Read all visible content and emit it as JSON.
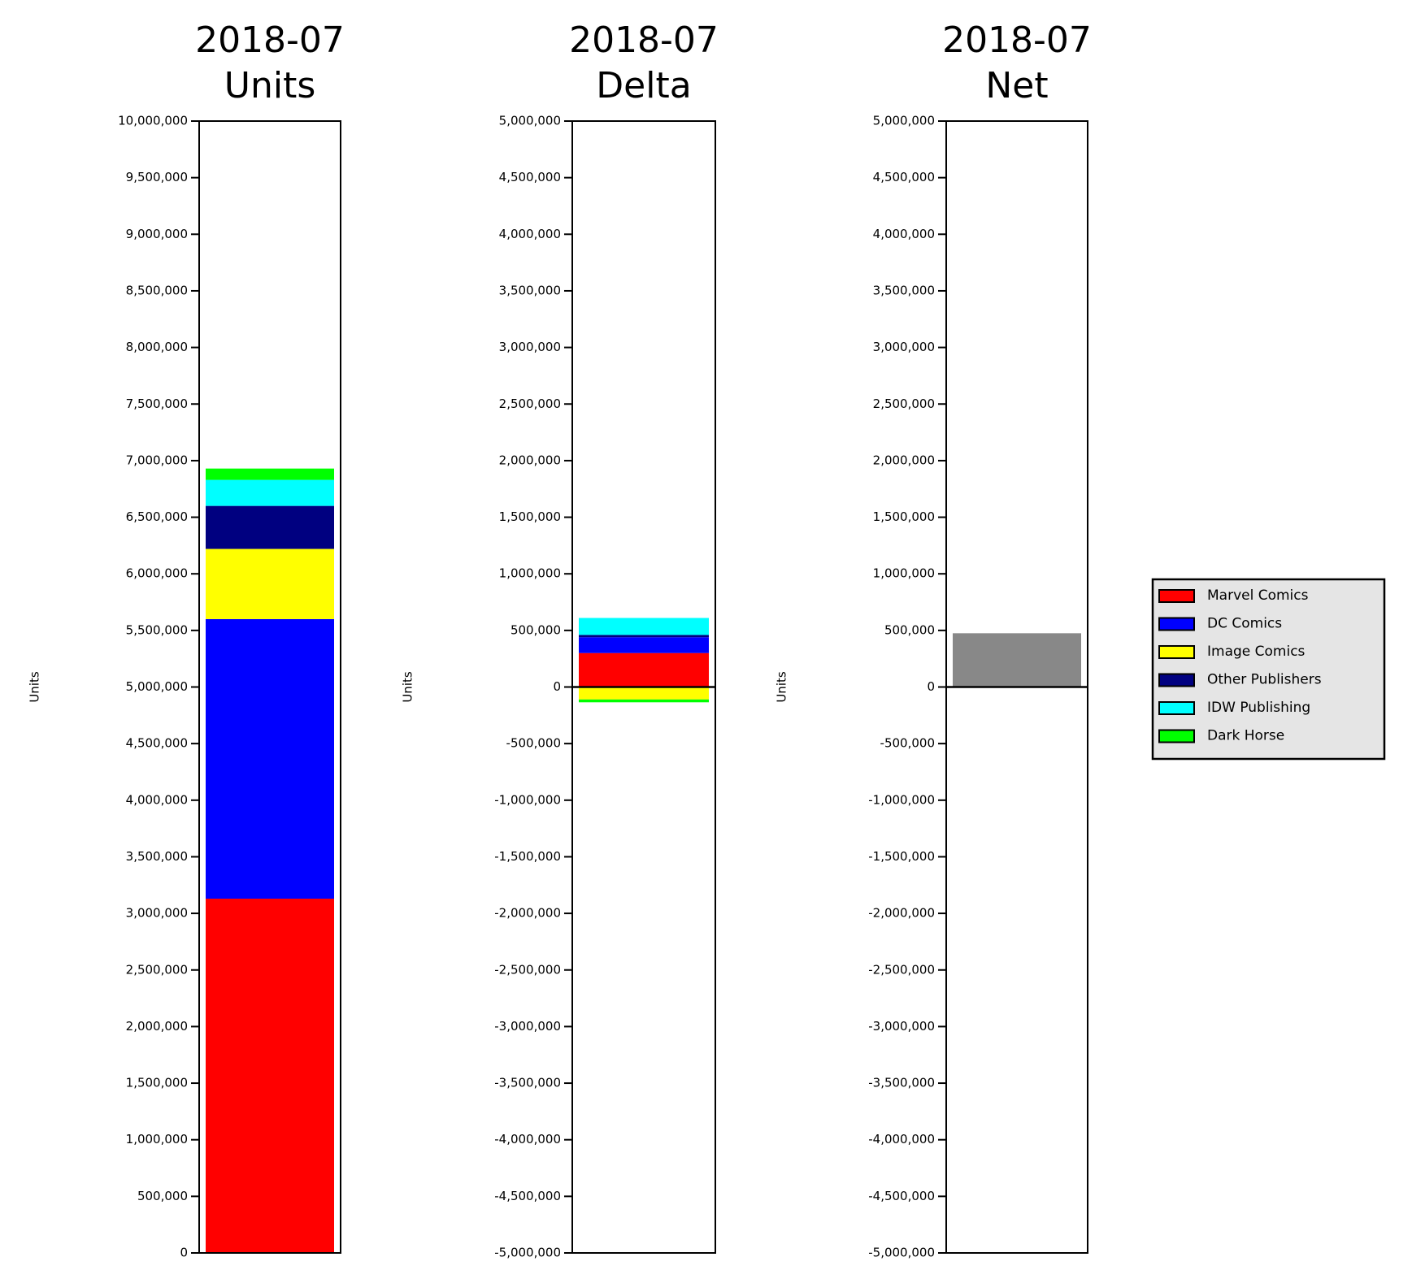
{
  "chart_data": [
    {
      "type": "stacked-bar",
      "title": "2018-07",
      "subtitle": "Units",
      "ylabel": "Units",
      "series": [
        {
          "name": "Marvel Comics",
          "color": "#ff0000",
          "values": [
            3130000
          ]
        },
        {
          "name": "DC Comics",
          "color": "#0000ff",
          "values": [
            2470000
          ]
        },
        {
          "name": "Image Comics",
          "color": "#ffff00",
          "values": [
            620000
          ]
        },
        {
          "name": "Other Publishers",
          "color": "#000080",
          "values": [
            380000
          ]
        },
        {
          "name": "IDW Publishing",
          "color": "#00ffff",
          "values": [
            230000
          ]
        },
        {
          "name": "Dark Horse",
          "color": "#00ff00",
          "values": [
            100000
          ]
        }
      ],
      "ylim": [
        0,
        10000000
      ],
      "yticks": [
        0,
        {
          "value": 500000,
          "label": "500,000"
        },
        {
          "value": 1000000,
          "label": "1,000,000"
        },
        {
          "value": 1500000,
          "label": "1,500,000"
        },
        {
          "value": 2000000,
          "label": "2,000,000"
        },
        {
          "value": 2500000,
          "label": "2,500,000"
        },
        {
          "value": 3000000,
          "label": "3,000,000"
        },
        {
          "value": 3500000,
          "label": "3,500,000"
        },
        {
          "value": 4000000,
          "label": "4,000,000"
        },
        {
          "value": 4500000,
          "label": "4,500,000"
        },
        {
          "value": 5000000,
          "label": "5,000,000"
        },
        {
          "value": 5500000,
          "label": "5,500,000"
        },
        {
          "value": 6000000,
          "label": "6,000,000"
        },
        {
          "value": 6500000,
          "label": "6,500,000"
        },
        {
          "value": 7000000,
          "label": "7,000,000"
        },
        {
          "value": 7500000,
          "label": "7,500,000"
        },
        {
          "value": 8000000,
          "label": "8,000,000"
        },
        {
          "value": 8500000,
          "label": "8,500,000"
        },
        {
          "value": 9000000,
          "label": "9,000,000"
        },
        {
          "value": 9500000,
          "label": "9,500,000"
        },
        {
          "value": 10000000,
          "label": "10,000,000"
        }
      ]
    },
    {
      "type": "stacked-bar",
      "title": "2018-07",
      "subtitle": "Delta",
      "ylabel": "Units",
      "series": [
        {
          "name": "Marvel Comics",
          "color": "#ff0000",
          "values": [
            300000
          ]
        },
        {
          "name": "DC Comics",
          "color": "#0000ff",
          "values": [
            140000
          ]
        },
        {
          "name": "Image Comics",
          "color": "#ffff00",
          "values": [
            -110000
          ]
        },
        {
          "name": "Other Publishers",
          "color": "#000080",
          "values": [
            20000
          ]
        },
        {
          "name": "IDW Publishing",
          "color": "#00ffff",
          "values": [
            150000
          ]
        },
        {
          "name": "Dark Horse",
          "color": "#00ff00",
          "values": [
            -25000
          ]
        }
      ],
      "ylim": [
        -5000000,
        5000000
      ],
      "yticks": [
        {
          "value": -5000000,
          "label": "-5,000,000"
        },
        {
          "value": -4500000,
          "label": "-4,500,000"
        },
        {
          "value": -4000000,
          "label": "-4,000,000"
        },
        {
          "value": -3500000,
          "label": "-3,500,000"
        },
        {
          "value": -3000000,
          "label": "-3,000,000"
        },
        {
          "value": -2500000,
          "label": "-2,500,000"
        },
        {
          "value": -2000000,
          "label": "-2,000,000"
        },
        {
          "value": -1500000,
          "label": "-1,500,000"
        },
        {
          "value": -1000000,
          "label": "-1,000,000"
        },
        {
          "value": -500000,
          "label": "-500,000"
        },
        0,
        {
          "value": 500000,
          "label": "500,000"
        },
        {
          "value": 1000000,
          "label": "1,000,000"
        },
        {
          "value": 1500000,
          "label": "1,500,000"
        },
        {
          "value": 2000000,
          "label": "2,000,000"
        },
        {
          "value": 2500000,
          "label": "2,500,000"
        },
        {
          "value": 3000000,
          "label": "3,000,000"
        },
        {
          "value": 3500000,
          "label": "3,500,000"
        },
        {
          "value": 4000000,
          "label": "4,000,000"
        },
        {
          "value": 4500000,
          "label": "4,500,000"
        },
        {
          "value": 5000000,
          "label": "5,000,000"
        }
      ]
    },
    {
      "type": "bar",
      "title": "2018-07",
      "subtitle": "Net",
      "ylabel": "Units",
      "values": [
        475000
      ],
      "color": "#888888",
      "ylim": [
        -5000000,
        5000000
      ],
      "yticks": [
        {
          "value": -5000000,
          "label": "-5,000,000"
        },
        {
          "value": -4500000,
          "label": "-4,500,000"
        },
        {
          "value": -4000000,
          "label": "-4,000,000"
        },
        {
          "value": -3500000,
          "label": "-3,500,000"
        },
        {
          "value": -3000000,
          "label": "-3,000,000"
        },
        {
          "value": -2500000,
          "label": "-2,500,000"
        },
        {
          "value": -2000000,
          "label": "-2,000,000"
        },
        {
          "value": -1500000,
          "label": "-1,500,000"
        },
        {
          "value": -1000000,
          "label": "-1,000,000"
        },
        {
          "value": -500000,
          "label": "-500,000"
        },
        0,
        {
          "value": 500000,
          "label": "500,000"
        },
        {
          "value": 1000000,
          "label": "1,000,000"
        },
        {
          "value": 1500000,
          "label": "1,500,000"
        },
        {
          "value": 2000000,
          "label": "2,000,000"
        },
        {
          "value": 2500000,
          "label": "2,500,000"
        },
        {
          "value": 3000000,
          "label": "3,000,000"
        },
        {
          "value": 3500000,
          "label": "3,500,000"
        },
        {
          "value": 4000000,
          "label": "4,000,000"
        },
        {
          "value": 4500000,
          "label": "4,500,000"
        },
        {
          "value": 5000000,
          "label": "5,000,000"
        }
      ]
    }
  ]
}
